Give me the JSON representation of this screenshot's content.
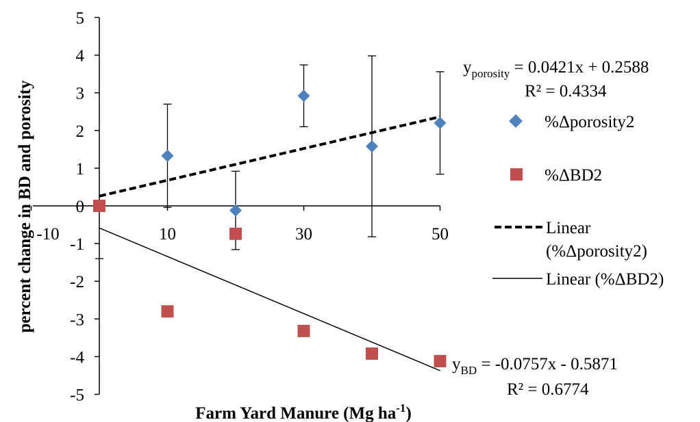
{
  "chart_data": {
    "type": "scatter",
    "xlabel": "Farm Yard Manure (Mg ha",
    "xlabel_sup": "-1",
    "xlabel_close": ")",
    "ylabel": "percent change in BD and porosity",
    "xlim": [
      -10,
      50
    ],
    "ylim": [
      -5,
      5
    ],
    "x_ticks": [
      "-10",
      "10",
      "30",
      "50"
    ],
    "x_tick_values": [
      -10,
      10,
      30,
      50
    ],
    "y_ticks": [
      "5",
      "4",
      "3",
      "2",
      "1",
      "0",
      "-1",
      "-2",
      "-3",
      "-4",
      "-5"
    ],
    "y_tick_values": [
      5,
      4,
      3,
      2,
      1,
      0,
      -1,
      -2,
      -3,
      -4,
      -5
    ],
    "series": [
      {
        "name": "%Δporosity2",
        "marker": "diamond",
        "color": "#4F81BD",
        "points": [
          {
            "x": 0,
            "y": 0.0,
            "err": 0.0
          },
          {
            "x": 10,
            "y": 1.33,
            "err": 1.37
          },
          {
            "x": 20,
            "y": -0.12,
            "err": 1.04
          },
          {
            "x": 30,
            "y": 2.92,
            "err": 0.82
          },
          {
            "x": 40,
            "y": 1.58,
            "err": 2.4
          },
          {
            "x": 50,
            "y": 2.2,
            "err": 1.36
          }
        ]
      },
      {
        "name": "%ΔBD2",
        "marker": "square",
        "color": "#C0504D",
        "points": [
          {
            "x": 0,
            "y": 0.0
          },
          {
            "x": 10,
            "y": -2.8
          },
          {
            "x": 20,
            "y": -0.74
          },
          {
            "x": 30,
            "y": -3.32
          },
          {
            "x": 40,
            "y": -3.92
          },
          {
            "x": 50,
            "y": -4.12
          }
        ]
      }
    ],
    "trendlines": [
      {
        "name": "Linear (%Δporosity2)",
        "slope": 0.0421,
        "intercept": 0.2588,
        "style": "dashed",
        "x_range": [
          0,
          50
        ]
      },
      {
        "name": "Linear (%ΔBD2)",
        "slope": -0.0757,
        "intercept": -0.5871,
        "style": "solid",
        "x_range": [
          0,
          50
        ]
      }
    ],
    "equations": {
      "porosity_y": "y",
      "porosity_sub": "porosity",
      "porosity_rhs": " = 0.0421x + 0.2588",
      "porosity_r2": "R² = 0.4334",
      "bd_y": "y",
      "bd_sub": "BD",
      "bd_rhs": " = -0.0757x - 0.5871",
      "bd_r2": "R² = 0.6774"
    },
    "legend": {
      "position": "right",
      "items": [
        "%Δporosity2",
        "%ΔBD2",
        "Linear",
        "(%Δporosity2)",
        "Linear (%ΔBD2)"
      ]
    },
    "grid": false
  }
}
